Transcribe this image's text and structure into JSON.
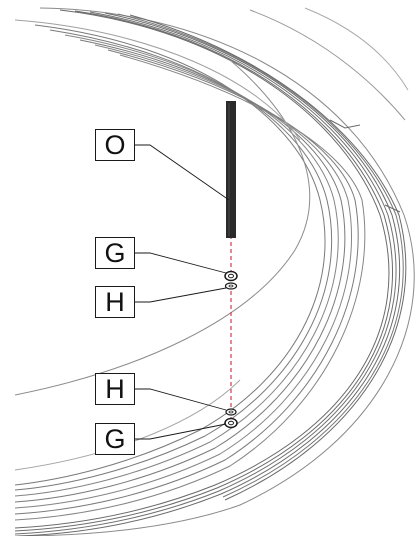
{
  "diagram": {
    "callouts": [
      {
        "id": "O",
        "label": "O",
        "part": "cable"
      },
      {
        "id": "G1",
        "label": "G",
        "part": "nut-upper"
      },
      {
        "id": "H1",
        "label": "H",
        "part": "washer-upper"
      },
      {
        "id": "H2",
        "label": "H",
        "part": "washer-lower"
      },
      {
        "id": "G2",
        "label": "G",
        "part": "nut-lower"
      }
    ],
    "colors": {
      "line": "#1a1a1a",
      "rim": "#6a6a6a",
      "rim_light": "#9a9a9a",
      "axis": "#d23b4a",
      "cable": "#2a2a2a"
    }
  }
}
